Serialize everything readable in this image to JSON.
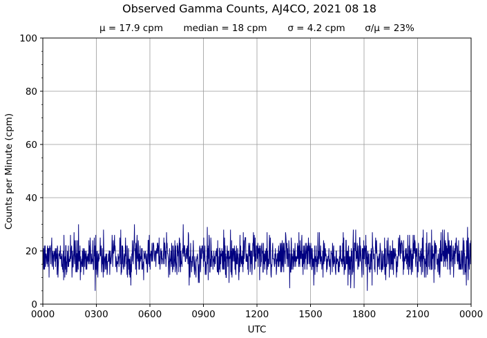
{
  "chart_data": {
    "type": "line",
    "title": "Observed Gamma Counts, AJ4CO, 2021 08 18",
    "stats": [
      "μ = 17.9 cpm",
      "median = 18 cpm",
      "σ = 4.2 cpm",
      "σ/μ = 23%"
    ],
    "xlabel": "UTC",
    "ylabel": "Counts per Minute (cpm)",
    "x_ticks": [
      "0000",
      "0300",
      "0600",
      "0900",
      "1200",
      "1500",
      "1800",
      "2100",
      "0000"
    ],
    "y_ticks": [
      "0",
      "20",
      "40",
      "60",
      "80",
      "100"
    ],
    "ylim": [
      0,
      100
    ],
    "xlim_hours": [
      0,
      24
    ],
    "grid": true,
    "line_color": "#000080",
    "series": [
      {
        "sample_interval_minutes": 1,
        "mean": 17.9,
        "sd": 4.2,
        "min": 5,
        "max": 33
      }
    ]
  }
}
